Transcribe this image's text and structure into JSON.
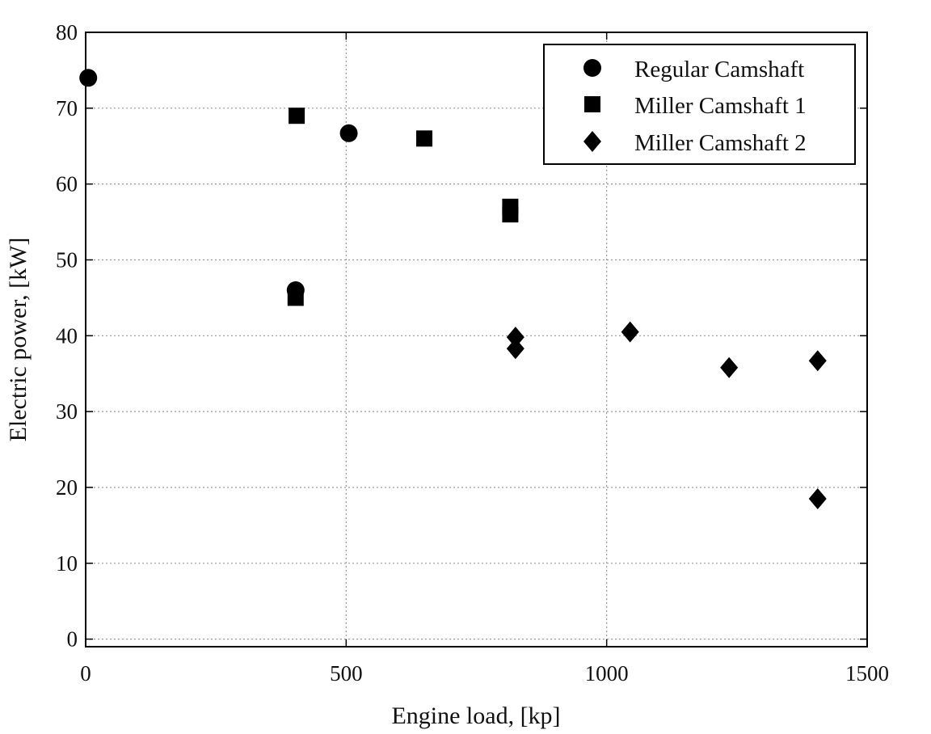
{
  "chart_data": {
    "type": "scatter",
    "title": "",
    "xlabel": "Engine load, [kp]",
    "ylabel": "Electric power, [kW]",
    "xlim": [
      0,
      1500
    ],
    "ylim": [
      -1,
      80
    ],
    "xticks": [
      0,
      500,
      1000,
      1500
    ],
    "yticks": [
      0,
      10,
      20,
      30,
      40,
      50,
      60,
      70,
      80
    ],
    "grid": true,
    "legend_position": "top-right",
    "series": [
      {
        "name": "Regular Camshaft",
        "marker": "circle",
        "color": "#000000",
        "points": [
          [
            5,
            74
          ],
          [
            403,
            46
          ],
          [
            505,
            66.7
          ]
        ]
      },
      {
        "name": "Miller Camshaft 1",
        "marker": "square",
        "color": "#000000",
        "points": [
          [
            405,
            69
          ],
          [
            403,
            45
          ],
          [
            650,
            66
          ],
          [
            815,
            57
          ],
          [
            815,
            56
          ]
        ]
      },
      {
        "name": "Miller Camshaft 2",
        "marker": "diamond",
        "color": "#000000",
        "points": [
          [
            825,
            39.8
          ],
          [
            825,
            38.3
          ],
          [
            1045,
            40.5
          ],
          [
            1235,
            35.8
          ],
          [
            1405,
            36.7
          ],
          [
            1405,
            18.5
          ]
        ]
      }
    ]
  }
}
